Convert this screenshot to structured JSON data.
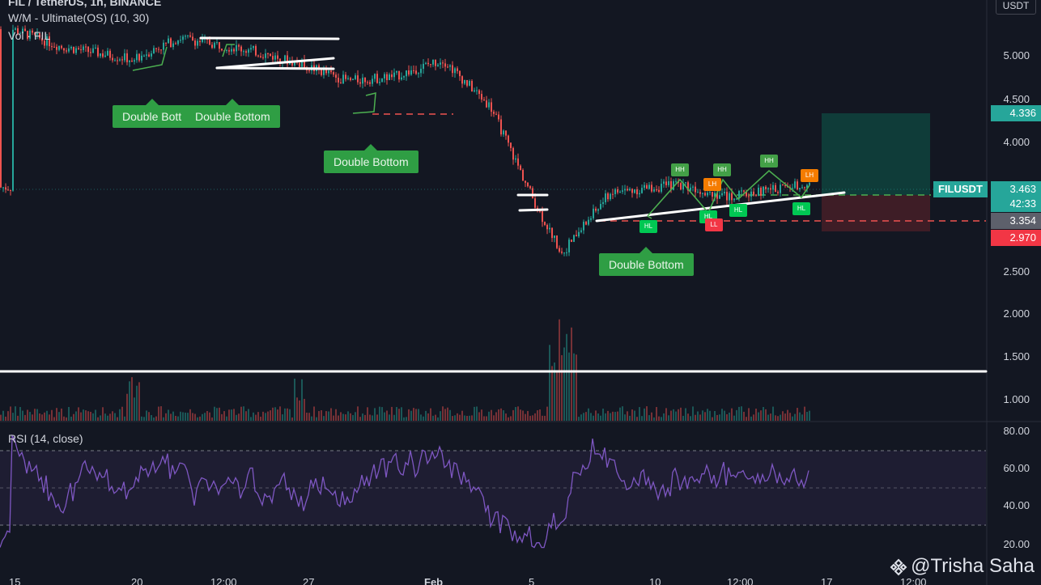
{
  "header": {
    "title": "FIL / TetherUS, 1h, BINANCE",
    "indicator": "W/M - Ultimate(OS) (10, 30)",
    "volume": "Vol · FIL",
    "currency": "USDT"
  },
  "rsi": {
    "label": "RSI (14, close)",
    "axis": [
      "80.00",
      "60.00",
      "40.00",
      "20.00"
    ]
  },
  "price_axis": [
    "5.000",
    "4.500",
    "4.000",
    "2.500",
    "2.000",
    "1.500",
    "1.000"
  ],
  "price_tags": {
    "take_profit": "4.336",
    "last_price": "3.463",
    "countdown": "42:33",
    "entry": "3.354",
    "stop_loss": "2.970"
  },
  "symbol_tag": "FILUSDT",
  "time_axis": [
    "15",
    "20",
    "12:00",
    "27",
    "Feb",
    "5",
    "10",
    "12:00",
    "17",
    "12:00"
  ],
  "pattern_labels": [
    "Double Bott",
    "Double Bottom",
    "Double Bottom",
    "Double Bottom"
  ],
  "swing_labels": [
    "HH",
    "HH",
    "HH",
    "LH",
    "LH",
    "HL",
    "HL",
    "HL",
    "HL",
    "LL"
  ],
  "watermark": "@Trisha Saha",
  "colors": {
    "background": "#131722",
    "up": "#26a69a",
    "down": "#ef5350",
    "rsi_line": "#7e57c2",
    "pattern_green": "#2f9e44",
    "swing_high": "#43a047",
    "swing_low_green": "#00c853",
    "swing_orange": "#f57c00",
    "swing_red": "#f23645"
  },
  "chart_data": {
    "type": "candlestick",
    "symbol": "FIL / TetherUS",
    "interval": "1h",
    "exchange": "BINANCE",
    "price_ticks": [
      5.0,
      4.5,
      4.0,
      2.5,
      2.0,
      1.5,
      1.0
    ],
    "rsi_ticks": [
      80,
      60,
      40,
      20
    ],
    "close_path": [
      [
        15,
        5.3
      ],
      [
        17,
        5.1
      ],
      [
        20,
        4.95
      ],
      [
        22,
        5.2
      ],
      [
        25,
        5.05
      ],
      [
        27,
        4.9
      ],
      [
        29,
        4.7
      ],
      [
        31,
        4.75
      ],
      [
        33,
        4.95
      ],
      [
        35,
        4.4
      ],
      [
        37,
        3.2
      ],
      [
        38,
        2.7
      ],
      [
        40,
        3.4
      ],
      [
        43,
        3.5
      ],
      [
        45,
        3.35
      ],
      [
        48,
        3.5
      ],
      [
        50,
        3.6
      ],
      [
        52,
        3.4
      ],
      [
        54,
        3.6
      ],
      [
        56,
        3.48
      ],
      [
        58,
        3.463
      ]
    ],
    "levels": {
      "take_profit": 4.336,
      "last": 3.463,
      "entry": 3.354,
      "stop_loss": 2.97,
      "support_line": 1.33
    },
    "rsi_last": 58
  }
}
